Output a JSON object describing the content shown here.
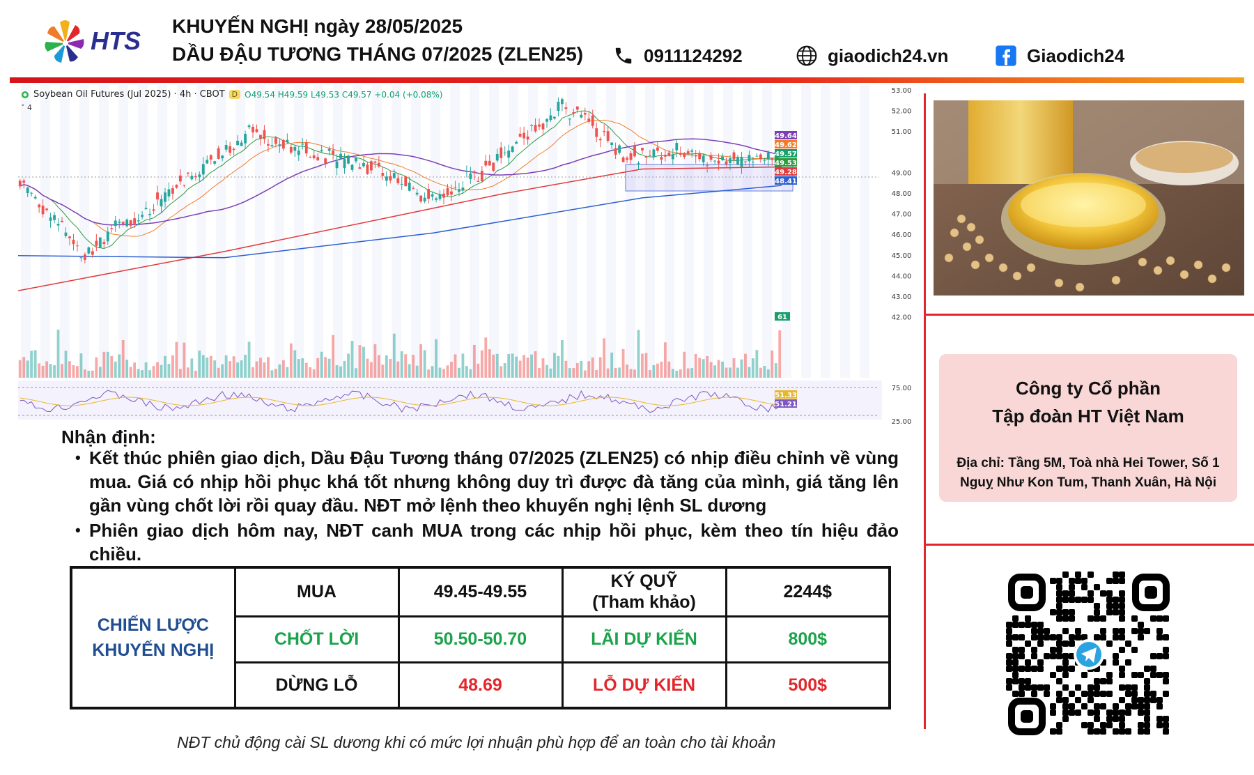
{
  "header": {
    "logo_text": "HTS",
    "title_line1": "KHUYẾN NGHỊ ngày 28/05/2025",
    "title_line2": "DẦU ĐẬU TƯƠNG THÁNG 07/2025 (ZLEN25)",
    "phone": "0911124292",
    "website": "giaodich24.vn",
    "facebook": "Giaodich24",
    "icons": [
      "phone-icon",
      "globe-icon",
      "facebook-icon"
    ]
  },
  "chart": {
    "title": "Soybean Oil Futures (Jul 2025) · 4h · CBOT",
    "badge": "D",
    "ohlc": "O49.54 H49.59 L49.53 C49.57 +0.04 (+0.08%)",
    "indicator_count": "4",
    "price_axis_ticks": [
      "53.00",
      "52.00",
      "51.00",
      "49.00",
      "48.00",
      "47.00",
      "46.00",
      "45.00",
      "44.00",
      "43.00",
      "42.00"
    ],
    "price_tags": [
      {
        "label": "49.64",
        "color": "#7b3fb5"
      },
      {
        "label": "49.62",
        "color": "#f07c2a"
      },
      {
        "label": "49.57",
        "color": "#17a06d"
      },
      {
        "label": "49.53",
        "color": "#2e9a3c"
      },
      {
        "label": "49.28",
        "color": "#e03a3a"
      },
      {
        "label": "48.41",
        "color": "#2b5fd0"
      }
    ],
    "volume_tag": "61",
    "rsi_axis_ticks": [
      "75.00",
      "25.00"
    ],
    "rsi_tags": [
      {
        "label": "51.33",
        "color": "#e6b82c"
      },
      {
        "label": "51.21",
        "color": "#7e57c2"
      }
    ]
  },
  "analysis": {
    "heading": "Nhận định:",
    "bullets": [
      "Kết thúc phiên giao dịch, Dầu Đậu Tương tháng 07/2025 (ZLEN25) có nhịp điều chỉnh về vùng mua. Giá có nhịp hồi phục khá tốt nhưng không duy trì được đà tăng của mình, giá tăng lên gần vùng chốt lời rồi quay đầu. NĐT mở lệnh theo khuyến nghị lệnh SL dương",
      "Phiên giao dịch hôm nay, NĐT canh MUA trong các nhịp hồi phục, kèm theo tín hiệu đảo chiều."
    ]
  },
  "table": {
    "strategy_label_1": "CHIẾN LƯỢC",
    "strategy_label_2": "KHUYẾN NGHỊ",
    "rows": [
      {
        "label": "MUA",
        "value": "49.45-49.55",
        "label2_line1": "KÝ QUỸ",
        "label2_line2": "(Tham khảo)",
        "value2": "2244$"
      },
      {
        "label": "CHỐT LỜI",
        "value": "50.50-50.70",
        "label2": "LÃI DỰ KIẾN",
        "value2": "800$"
      },
      {
        "label": "DỪNG LỖ",
        "value": "48.69",
        "label2": "LỖ DỰ KIẾN",
        "value2": "500$"
      }
    ]
  },
  "footnote": "NĐT chủ động cài SL dương khi có mức lợi nhuận phù hợp để an toàn cho tài khoản",
  "company": {
    "line1": "Công ty Cổ phần",
    "line2": "Tập đoàn HT Việt Nam",
    "address_line1": "Địa chỉ: Tầng 5M, Toà nhà Hei Tower, Số 1",
    "address_line2": "Nguỵ Như Kon Tum, Thanh Xuân, Hà Nội"
  },
  "colors": {
    "accent_red": "#e3262b",
    "strategy_blue": "#214e91",
    "profit_green": "#1aa34a",
    "loss_red": "#e3262b",
    "card_pink": "#f8d7d6"
  }
}
